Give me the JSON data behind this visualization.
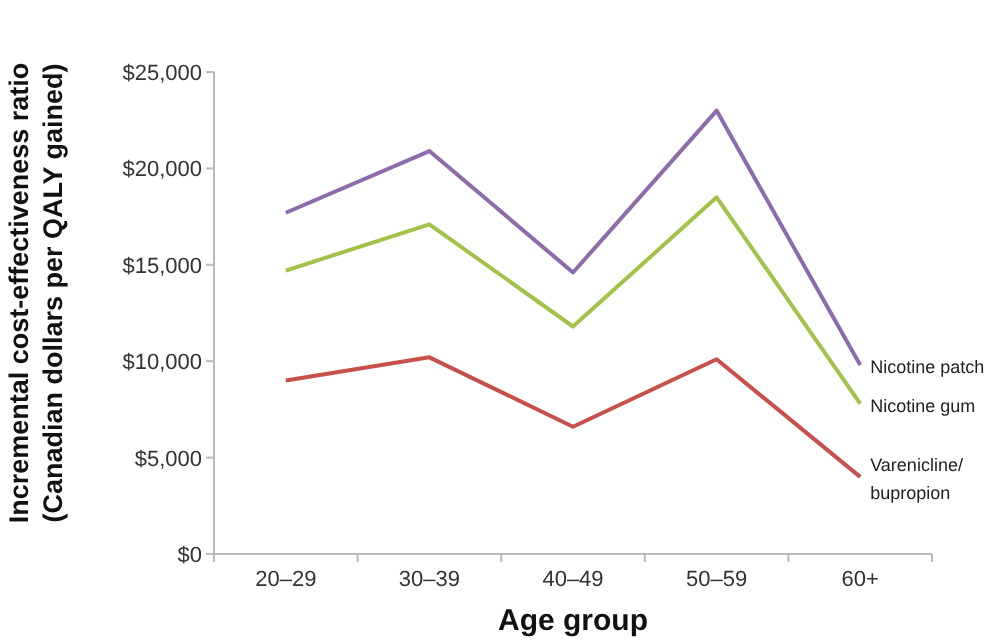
{
  "chart_data": {
    "type": "line",
    "xlabel": "Age group",
    "ylabel": "Incremental cost-effectiveness ratio\n(Canadian dollars per QALY gained)",
    "categories": [
      "20–29",
      "30–39",
      "40–49",
      "50–59",
      "60+"
    ],
    "ylim": [
      0,
      25000
    ],
    "yticks": [
      {
        "value": 0,
        "label": "$0"
      },
      {
        "value": 5000,
        "label": "$5,000"
      },
      {
        "value": 10000,
        "label": "$10,000"
      },
      {
        "value": 15000,
        "label": "$15,000"
      },
      {
        "value": 20000,
        "label": "$20,000"
      },
      {
        "value": 25000,
        "label": "$25,000"
      }
    ],
    "series": [
      {
        "name": "Nicotine patch",
        "color": "#8e6bab",
        "values": [
          17700,
          20900,
          14600,
          23000,
          9800
        ]
      },
      {
        "name": "Nicotine gum",
        "color": "#a3c24a",
        "values": [
          14700,
          17100,
          11800,
          18500,
          7800
        ]
      },
      {
        "name": "Varenicline/\nbupropion",
        "color": "#c8504a",
        "values": [
          9000,
          10200,
          6600,
          10100,
          4000
        ]
      }
    ]
  }
}
